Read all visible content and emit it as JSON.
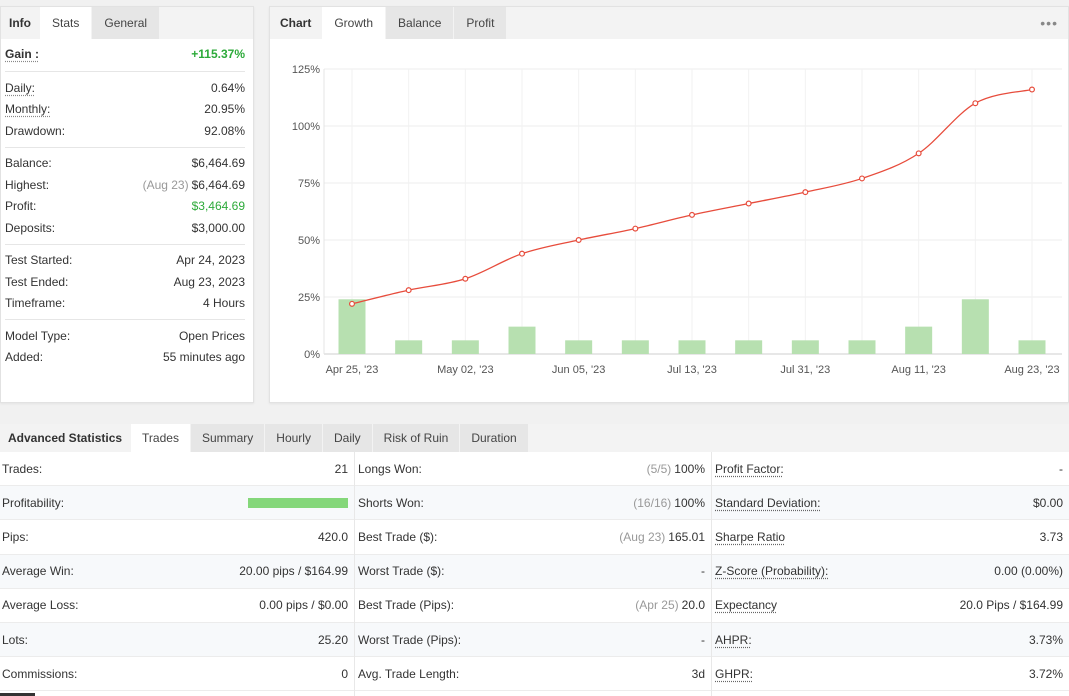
{
  "info_panel": {
    "tabs": [
      "Info",
      "Stats",
      "General"
    ],
    "gain": {
      "label": "Gain :",
      "value": "+115.37%"
    },
    "group1": [
      {
        "label": "Daily:",
        "value": "0.64%"
      },
      {
        "label": "Monthly:",
        "value": "20.95%"
      },
      {
        "label": "Drawdown:",
        "value": "92.08%"
      }
    ],
    "balance": {
      "label": "Balance:",
      "value": "$6,464.69"
    },
    "highest": {
      "label": "Highest:",
      "date": "(Aug 23)",
      "value": "$6,464.69"
    },
    "profit": {
      "label": "Profit:",
      "value": "$3,464.69"
    },
    "deposits": {
      "label": "Deposits:",
      "value": "$3,000.00"
    },
    "group3": [
      {
        "label": "Test Started:",
        "value": "Apr 24, 2023"
      },
      {
        "label": "Test Ended:",
        "value": "Aug 23, 2023"
      },
      {
        "label": "Timeframe:",
        "value": "4 Hours"
      }
    ],
    "group4": [
      {
        "label": "Model Type:",
        "value": "Open Prices"
      },
      {
        "label": "Added:",
        "value": "55 minutes ago"
      }
    ]
  },
  "chart_panel": {
    "tabs": [
      "Chart",
      "Growth",
      "Balance",
      "Profit"
    ],
    "more_icon": "more-dots-icon"
  },
  "chart_data": {
    "type": "line",
    "ylim": [
      0,
      125
    ],
    "yticks": [
      "0%",
      "25%",
      "50%",
      "75%",
      "100%",
      "125%"
    ],
    "xticks": [
      "Apr 25, '23",
      "May 02, '23",
      "Jun 05, '23",
      "Jul 13, '23",
      "Jul 31, '23",
      "Aug 11, '23",
      "Aug 23, '23"
    ],
    "grid": true,
    "line_color": "#e74c3c",
    "bar_color": "#b7e0b0",
    "series": [
      {
        "type": "line",
        "values": [
          22,
          28,
          33,
          44,
          50,
          55,
          61,
          66,
          71,
          77,
          88,
          110,
          116
        ]
      },
      {
        "type": "bar",
        "values": [
          24,
          6,
          6,
          12,
          6,
          6,
          6,
          6,
          6,
          6,
          12,
          24,
          6
        ]
      }
    ]
  },
  "advanced": {
    "tabs": [
      "Advanced Statistics",
      "Trades",
      "Summary",
      "Hourly",
      "Daily",
      "Risk of Ruin",
      "Duration"
    ],
    "col1": [
      {
        "label": "Trades:",
        "value": "21"
      },
      {
        "label": "Profitability:",
        "value": ""
      },
      {
        "label": "Pips:",
        "value": "420.0"
      },
      {
        "label": "Average Win:",
        "value": "20.00 pips / $164.99"
      },
      {
        "label": "Average Loss:",
        "value": "0.00 pips / $0.00"
      },
      {
        "label": "Lots:",
        "value": "25.20"
      },
      {
        "label": "Commissions:",
        "value": "0"
      }
    ],
    "profitability_fraction": 1.0,
    "col2": [
      {
        "label": "Longs Won:",
        "muted": "(5/5)",
        "value": "100%"
      },
      {
        "label": "Shorts Won:",
        "muted": "(16/16)",
        "value": "100%"
      },
      {
        "label": "Best Trade ($):",
        "muted": "(Aug 23)",
        "value": "165.01"
      },
      {
        "label": "Worst Trade ($):",
        "muted": "",
        "value": "-"
      },
      {
        "label": "Best Trade (Pips):",
        "muted": "(Apr 25)",
        "value": "20.0"
      },
      {
        "label": "Worst Trade (Pips):",
        "muted": "",
        "value": "-"
      },
      {
        "label": "Avg. Trade Length:",
        "muted": "",
        "value": "3d"
      }
    ],
    "col3": [
      {
        "label": "Profit Factor:",
        "value": "-"
      },
      {
        "label": "Standard Deviation:",
        "value": "$0.00"
      },
      {
        "label": "Sharpe Ratio",
        "value": "3.73"
      },
      {
        "label": "Z-Score (Probability):",
        "value": "0.00 (0.00%)"
      },
      {
        "label": "Expectancy",
        "value": "20.0 Pips / $164.99"
      },
      {
        "label": "AHPR:",
        "value": "3.73%"
      },
      {
        "label": "GHPR:",
        "value": "3.72%"
      }
    ]
  }
}
